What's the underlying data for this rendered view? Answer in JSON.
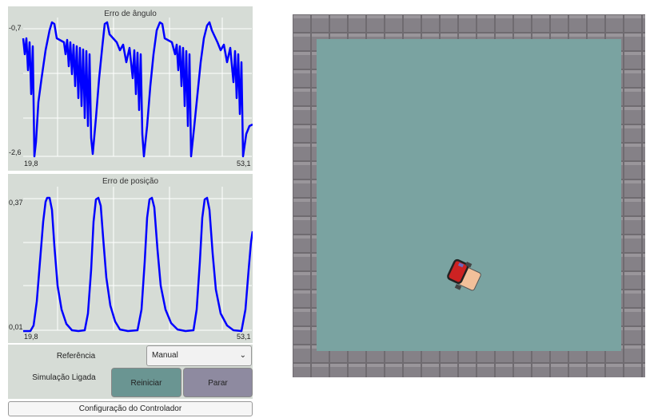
{
  "panel": {
    "angle_plot": {
      "title": "Erro de ângulo",
      "y_max": "-0,7",
      "y_min": "-2,6",
      "x_start": "19,8",
      "x_end": "53,1"
    },
    "position_plot": {
      "title": "Erro de posição",
      "y_max": "0,37",
      "y_min": "0,01",
      "x_start": "19,8",
      "x_end": "53,1"
    }
  },
  "controls": {
    "reference_label": "Referência",
    "reference_value": "Manual",
    "simulation_status": "Simulação Ligada",
    "restart_label": "Reiniciar",
    "stop_label": "Parar",
    "config_label": "Configuração do Controlador"
  },
  "colors": {
    "trace": "#0000ff",
    "restart_bg": "#6a9592",
    "stop_bg": "#8e8aa0",
    "floor": "#7aa3a1",
    "wall": "#7a767a"
  },
  "chart_data": [
    {
      "type": "line",
      "title": "Erro de ângulo",
      "xlim": [
        19.8,
        53.1
      ],
      "ylim": [
        -2.6,
        -0.7
      ],
      "series": [
        {
          "values": [
            -2.6,
            -1.8,
            -0.7,
            -1.2,
            -2.6,
            -0.7,
            -1.2,
            -2.6,
            -0.7,
            -1.2,
            -2.6,
            -0.7,
            -1.2,
            -2.3
          ]
        }
      ]
    },
    {
      "type": "line",
      "title": "Erro de posição",
      "xlim": [
        19.8,
        53.1
      ],
      "ylim": [
        0.01,
        0.37
      ],
      "series": [
        {
          "values": [
            0.01,
            0.37,
            0.05,
            0.01,
            0.37,
            0.05,
            0.01,
            0.37,
            0.05,
            0.01,
            0.37,
            0.05,
            0.01,
            0.28
          ]
        }
      ]
    }
  ],
  "icons": {
    "dropdown": "chevron-down-icon",
    "robot": "robot-icon"
  }
}
